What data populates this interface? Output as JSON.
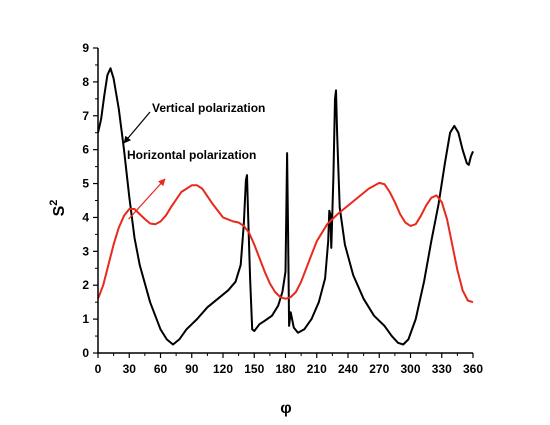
{
  "chart_data": {
    "type": "line",
    "title": "",
    "xlabel": "φ",
    "ylabel": "S",
    "ylabel_superscript": "2",
    "xlim": [
      0,
      360
    ],
    "ylim": [
      0,
      9
    ],
    "xticks": [
      0,
      30,
      60,
      90,
      120,
      150,
      180,
      210,
      240,
      270,
      300,
      330,
      360
    ],
    "yticks": [
      0,
      1,
      2,
      3,
      4,
      5,
      6,
      7,
      8,
      9
    ],
    "grid": false,
    "legend": "none",
    "annotations": [
      {
        "text": "Vertical polarization",
        "arrow_to": [
          25,
          6.2
        ]
      },
      {
        "text": "Horizontal  polarization",
        "arrow_to": [
          40,
          4.1
        ]
      }
    ],
    "series": [
      {
        "color": "#000000",
        "points": [
          [
            0,
            6.5
          ],
          [
            3,
            6.9
          ],
          [
            6,
            7.6
          ],
          [
            9,
            8.2
          ],
          [
            12,
            8.4
          ],
          [
            15,
            8.1
          ],
          [
            20,
            7.2
          ],
          [
            25,
            6.0
          ],
          [
            30,
            4.6
          ],
          [
            35,
            3.4
          ],
          [
            40,
            2.6
          ],
          [
            50,
            1.5
          ],
          [
            60,
            0.7
          ],
          [
            66,
            0.4
          ],
          [
            72,
            0.25
          ],
          [
            78,
            0.4
          ],
          [
            85,
            0.7
          ],
          [
            95,
            1.0
          ],
          [
            105,
            1.35
          ],
          [
            115,
            1.6
          ],
          [
            125,
            1.85
          ],
          [
            132,
            2.1
          ],
          [
            137,
            2.6
          ],
          [
            140,
            3.8
          ],
          [
            142,
            5.1
          ],
          [
            143,
            5.25
          ],
          [
            144,
            4.2
          ],
          [
            146,
            2.2
          ],
          [
            148,
            0.7
          ],
          [
            150,
            0.65
          ],
          [
            155,
            0.85
          ],
          [
            160,
            0.95
          ],
          [
            167,
            1.1
          ],
          [
            173,
            1.4
          ],
          [
            177,
            1.8
          ],
          [
            180,
            2.4
          ],
          [
            181.5,
            5.9
          ],
          [
            182.5,
            3.5
          ],
          [
            183.5,
            0.8
          ],
          [
            185,
            1.2
          ],
          [
            188,
            0.75
          ],
          [
            192,
            0.6
          ],
          [
            198,
            0.7
          ],
          [
            205,
            1.0
          ],
          [
            212,
            1.5
          ],
          [
            218,
            2.2
          ],
          [
            221,
            3.3
          ],
          [
            222,
            4.2
          ],
          [
            223,
            4.1
          ],
          [
            224,
            3.1
          ],
          [
            226,
            5.2
          ],
          [
            227.5,
            7.5
          ],
          [
            228.5,
            7.75
          ],
          [
            229.5,
            6.5
          ],
          [
            232,
            4.3
          ],
          [
            237,
            3.2
          ],
          [
            245,
            2.3
          ],
          [
            255,
            1.6
          ],
          [
            265,
            1.1
          ],
          [
            275,
            0.8
          ],
          [
            282,
            0.5
          ],
          [
            288,
            0.3
          ],
          [
            293,
            0.25
          ],
          [
            298,
            0.4
          ],
          [
            305,
            1.0
          ],
          [
            313,
            2.1
          ],
          [
            320,
            3.3
          ],
          [
            327,
            4.4
          ],
          [
            333,
            5.6
          ],
          [
            338,
            6.5
          ],
          [
            342,
            6.7
          ],
          [
            346,
            6.5
          ],
          [
            350,
            6.0
          ],
          [
            354,
            5.6
          ],
          [
            356,
            5.55
          ],
          [
            358,
            5.8
          ],
          [
            360,
            5.95
          ]
        ]
      },
      {
        "color": "#e8291c",
        "points": [
          [
            0,
            1.6
          ],
          [
            5,
            2.0
          ],
          [
            10,
            2.6
          ],
          [
            15,
            3.2
          ],
          [
            20,
            3.7
          ],
          [
            25,
            4.05
          ],
          [
            30,
            4.25
          ],
          [
            35,
            4.25
          ],
          [
            40,
            4.1
          ],
          [
            45,
            3.95
          ],
          [
            50,
            3.82
          ],
          [
            55,
            3.8
          ],
          [
            60,
            3.88
          ],
          [
            65,
            4.05
          ],
          [
            70,
            4.3
          ],
          [
            80,
            4.75
          ],
          [
            90,
            4.95
          ],
          [
            95,
            4.95
          ],
          [
            100,
            4.85
          ],
          [
            110,
            4.4
          ],
          [
            120,
            4.0
          ],
          [
            130,
            3.88
          ],
          [
            135,
            3.85
          ],
          [
            140,
            3.75
          ],
          [
            145,
            3.55
          ],
          [
            150,
            3.2
          ],
          [
            155,
            2.8
          ],
          [
            160,
            2.4
          ],
          [
            165,
            2.05
          ],
          [
            170,
            1.8
          ],
          [
            175,
            1.65
          ],
          [
            180,
            1.6
          ],
          [
            185,
            1.65
          ],
          [
            190,
            1.8
          ],
          [
            195,
            2.1
          ],
          [
            200,
            2.5
          ],
          [
            205,
            2.9
          ],
          [
            210,
            3.3
          ],
          [
            220,
            3.8
          ],
          [
            230,
            4.1
          ],
          [
            240,
            4.35
          ],
          [
            250,
            4.6
          ],
          [
            260,
            4.85
          ],
          [
            270,
            5.02
          ],
          [
            275,
            4.98
          ],
          [
            280,
            4.75
          ],
          [
            285,
            4.45
          ],
          [
            290,
            4.1
          ],
          [
            295,
            3.85
          ],
          [
            300,
            3.75
          ],
          [
            305,
            3.8
          ],
          [
            310,
            4.05
          ],
          [
            315,
            4.35
          ],
          [
            320,
            4.58
          ],
          [
            325,
            4.65
          ],
          [
            330,
            4.45
          ],
          [
            335,
            3.95
          ],
          [
            340,
            3.2
          ],
          [
            345,
            2.45
          ],
          [
            350,
            1.85
          ],
          [
            355,
            1.55
          ],
          [
            360,
            1.5
          ]
        ]
      }
    ]
  }
}
